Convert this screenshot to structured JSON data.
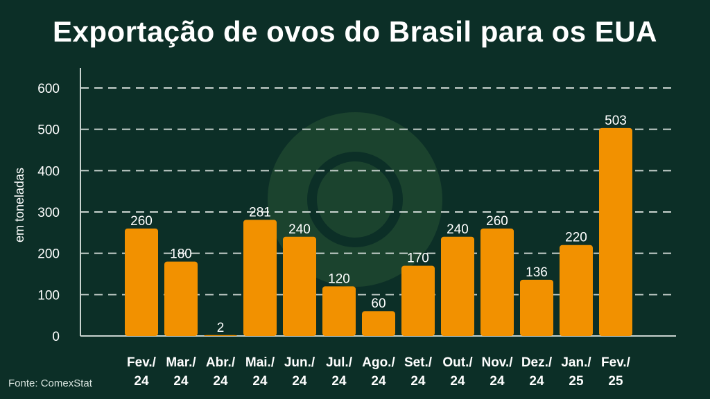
{
  "title": "Exportação de ovos do Brasil para os EUA",
  "source": "Fonte: ComexStat",
  "colors": {
    "background": "#0c2f27",
    "bar": "#f29100",
    "grid": "#c9d3cf",
    "text": "#ffffff",
    "watermark": "#1f4630"
  },
  "chart_data": {
    "type": "bar",
    "title": "Exportação de ovos do Brasil para os EUA",
    "ylabel": "em toneladas",
    "xlabel": "",
    "ylim": [
      0,
      600
    ],
    "yticks": [
      0,
      100,
      200,
      300,
      400,
      500,
      600
    ],
    "grid": true,
    "categories": [
      [
        "Fev./",
        "24"
      ],
      [
        "Mar./",
        "24"
      ],
      [
        "Abr./",
        "24"
      ],
      [
        "Mai./",
        "24"
      ],
      [
        "Jun./",
        "24"
      ],
      [
        "Jul./",
        "24"
      ],
      [
        "Ago./",
        "24"
      ],
      [
        "Set./",
        "24"
      ],
      [
        "Out./",
        "24"
      ],
      [
        "Nov./",
        "24"
      ],
      [
        "Dez./",
        "24"
      ],
      [
        "Jan./",
        "25"
      ],
      [
        "Fev./",
        "25"
      ]
    ],
    "values": [
      260,
      180,
      2,
      281,
      240,
      120,
      60,
      170,
      240,
      260,
      136,
      220,
      503
    ]
  }
}
